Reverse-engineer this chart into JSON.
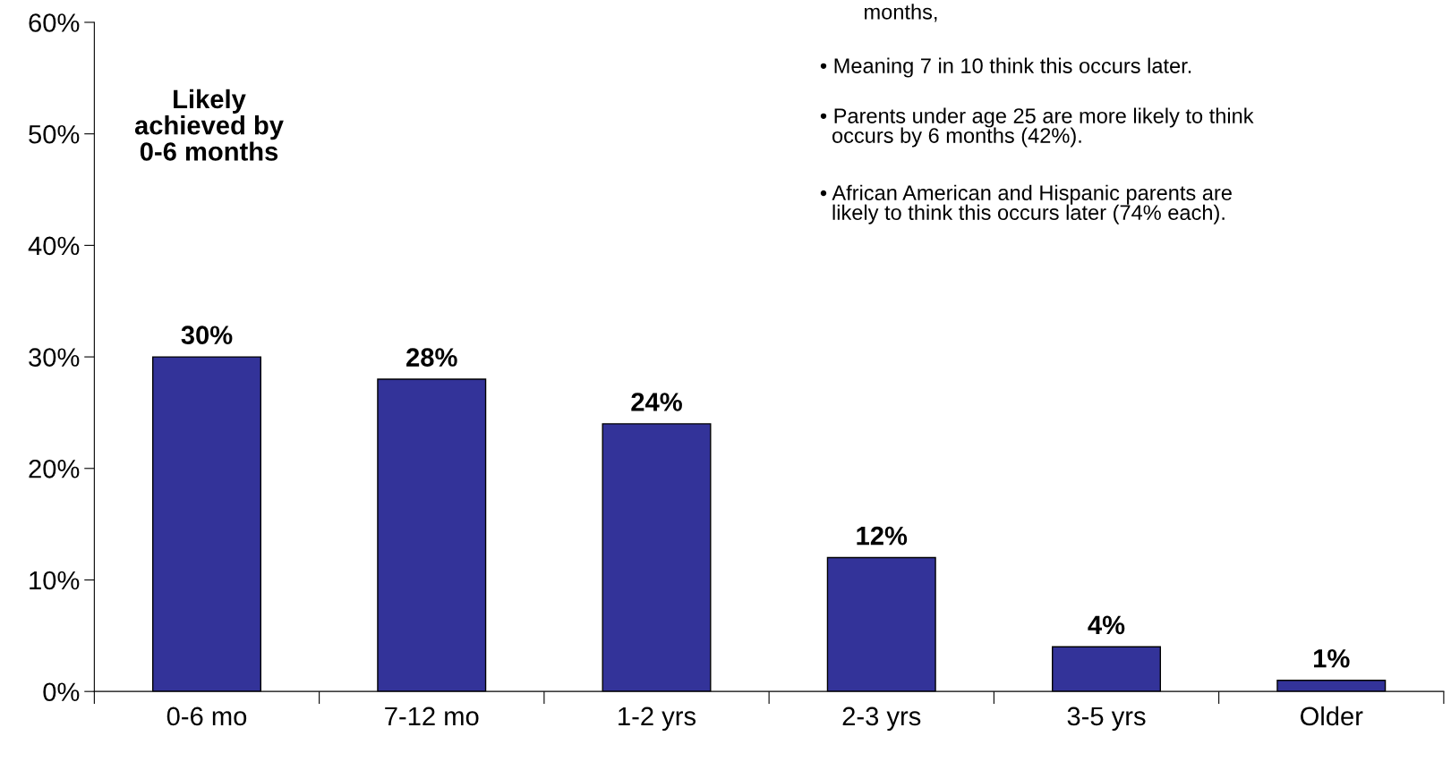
{
  "chart_data": {
    "type": "bar",
    "categories": [
      "0-6 mo",
      "7-12 mo",
      "1-2 yrs",
      "2-3 yrs",
      "3-5 yrs",
      "Older"
    ],
    "values": [
      30,
      28,
      24,
      12,
      4,
      1
    ],
    "color": "#333399",
    "data_labels": true,
    "value_labels": [
      "30%",
      "28%",
      "24%",
      "12%",
      "4%",
      "1%"
    ],
    "ylim": [
      0,
      60
    ],
    "yticks": [
      {
        "value": 0,
        "label": "0%"
      },
      {
        "value": 10,
        "label": "10%"
      },
      {
        "value": 20,
        "label": "20%"
      },
      {
        "value": 30,
        "label": "30%"
      },
      {
        "value": 40,
        "label": "40%"
      },
      {
        "value": 50,
        "label": "50%"
      },
      {
        "value": 60,
        "label": "60%"
      }
    ],
    "grid": false,
    "legend": false,
    "annotations": [
      "Likely\nachieved by\n0-6 months",
      "months,",
      "• Meaning 7 in 10 think this occurs later.",
      "• Parents under age 25 are more likely to think\n  occurs by 6 months (42%).",
      "• African American and Hispanic parents are\n  likely to think this occurs later (74% each)."
    ]
  }
}
